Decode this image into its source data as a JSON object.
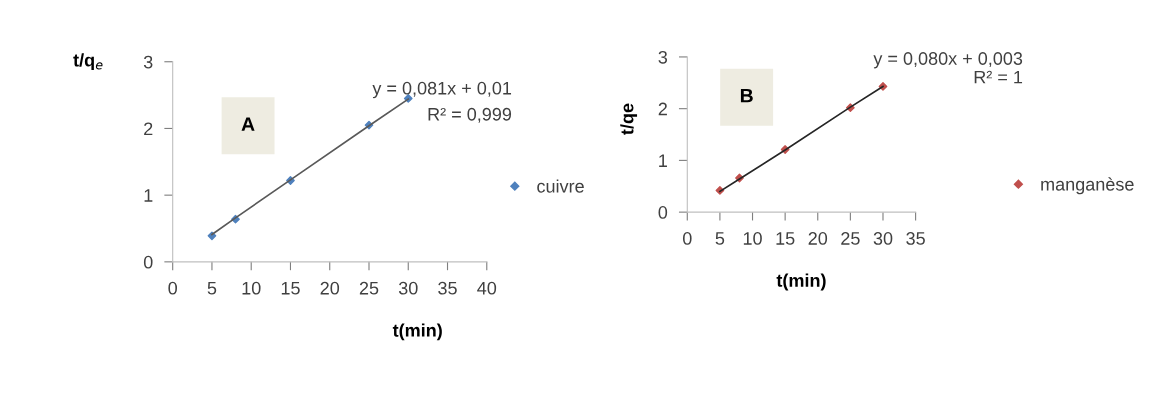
{
  "chart_data": [
    {
      "type": "scatter",
      "ylabel": "t/q$_{e}$",
      "xlabel": "t(min)",
      "x": [
        5,
        8,
        15,
        25,
        30
      ],
      "series": [
        {
          "name": "cuivre",
          "color": "#4f81bd",
          "values": [
            0.39,
            0.64,
            1.22,
            2.05,
            2.45
          ],
          "marker": "diamond"
        },
        {
          "type": "line",
          "color": "#595959",
          "values": [
            0.41,
            0.66,
            1.23,
            2.04,
            2.44
          ],
          "marker": "none"
        }
      ],
      "annotations": [
        "A",
        "y = 0,081x + 0,01",
        "R² = 0,999"
      ],
      "xlim": [
        0,
        40
      ],
      "xticks": [
        0,
        5,
        10,
        15,
        20,
        25,
        30,
        35,
        40
      ],
      "ylim": [
        0,
        3
      ],
      "yticks": [
        0,
        1,
        2,
        3
      ],
      "grid": false,
      "legend": "right"
    },
    {
      "type": "scatter",
      "ylabel": "t/qe",
      "xlabel": "t(min)",
      "x": [
        5,
        8,
        15,
        25,
        30
      ],
      "series": [
        {
          "name": "manganèse",
          "color": "#c0504d",
          "values": [
            0.42,
            0.66,
            1.21,
            2.02,
            2.43
          ],
          "marker": "diamond"
        },
        {
          "type": "line",
          "color": "#262626",
          "values": [
            0.4,
            0.64,
            1.2,
            2.03,
            2.43
          ],
          "marker": "none"
        }
      ],
      "annotations": [
        "B",
        "y = 0,080x + 0,003",
        "R² = 1"
      ],
      "xlim": [
        0,
        35
      ],
      "xticks": [
        0,
        5,
        10,
        15,
        20,
        25,
        30,
        35
      ],
      "ylim": [
        0,
        3
      ],
      "yticks": [
        0,
        1,
        2,
        3
      ],
      "grid": false,
      "legend": "right"
    }
  ]
}
